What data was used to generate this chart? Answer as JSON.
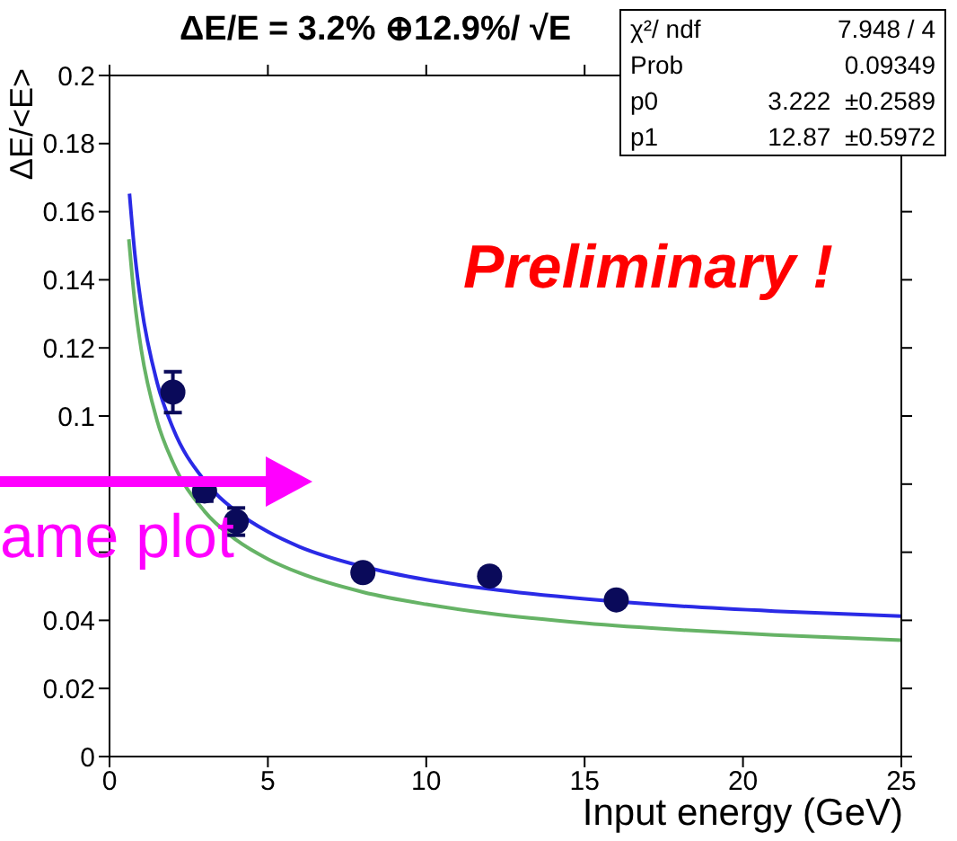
{
  "chart_data": {
    "type": "scatter",
    "title": "ΔE/E = 3.2% ⊕12.9%/ √E",
    "xlabel": "Input energy (GeV)",
    "ylabel": "ΔE/<E>",
    "xlim": [
      0,
      25
    ],
    "xticks": [
      0,
      5,
      10,
      15,
      20,
      25
    ],
    "ylim": [
      0,
      0.2
    ],
    "yticks": [
      0,
      0.02,
      0.04,
      {
        "value": 0.06,
        "label": null
      },
      {
        "value": 0.08,
        "label": null
      },
      0.1,
      0.12,
      0.14,
      0.16,
      0.18,
      0.2
    ],
    "annotations": [
      "Preliminary !",
      "ame plot",
      "χ²/ ndf",
      "7.948 / 4",
      "Prob",
      "0.09349",
      "p0",
      "3.222  ±0.2589",
      "p1",
      "12.87  ±0.5972"
    ],
    "series": [
      {
        "type": "line",
        "color": "#66b366",
        "x": [
          0.61,
          0.8,
          1,
          1.5,
          2,
          3,
          4,
          5,
          6,
          8,
          10,
          12,
          15,
          18,
          21,
          25
        ],
        "values": [
          0.1519,
          0.1332,
          0.1196,
          0.0987,
          0.0864,
          0.072,
          0.0636,
          0.058,
          0.0539,
          0.0483,
          0.0447,
          0.042,
          0.0392,
          0.0372,
          0.0357,
          0.0342
        ]
      },
      {
        "type": "line",
        "color": "#2a2ae6",
        "x": [
          0.63,
          0.8,
          1,
          1.5,
          2,
          3,
          4,
          5,
          6,
          8,
          10,
          12,
          15,
          18,
          21,
          25
        ],
        "values": [
          0.1653,
          0.1475,
          0.1327,
          0.1099,
          0.0965,
          0.081,
          0.072,
          0.066,
          0.0616,
          0.0558,
          0.0519,
          0.0492,
          0.0463,
          0.0442,
          0.0427,
          0.0412
        ]
      },
      {
        "type": "scatter",
        "color": "#0a0a5a",
        "marker": "circle",
        "x": [
          2,
          3,
          4,
          8,
          12,
          16
        ],
        "values": [
          0.107,
          0.078,
          0.069,
          0.054,
          0.053,
          0.046
        ],
        "errors": [
          0.006,
          0.003,
          0.004,
          0.002,
          0.002,
          0.002
        ]
      }
    ]
  }
}
